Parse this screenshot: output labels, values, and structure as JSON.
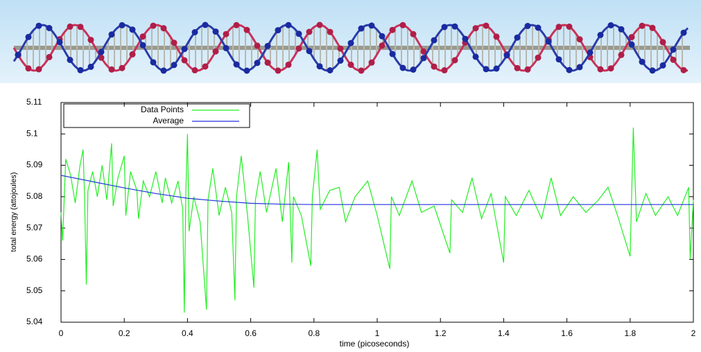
{
  "chart_data": {
    "type": "line",
    "ylabel": "total energy (attojoules)",
    "xlabel": "time  (picoseconds)",
    "xlim": [
      0,
      2
    ],
    "xticks": [
      0,
      0.2,
      0.4,
      0.6,
      0.8,
      1,
      1.2,
      1.4,
      1.6,
      1.8,
      2
    ],
    "ylim": [
      5.04,
      5.11
    ],
    "yticks": [
      5.04,
      5.05,
      5.06,
      5.07,
      5.08,
      5.09,
      5.1,
      5.11
    ],
    "legend": "top-left",
    "series": [
      {
        "name": "Data Points",
        "color": "#22ee22",
        "x": [
          0,
          0.005,
          0.015,
          0.03,
          0.045,
          0.06,
          0.07,
          0.075,
          0.08,
          0.085,
          0.1,
          0.115,
          0.13,
          0.145,
          0.16,
          0.165,
          0.18,
          0.2,
          0.205,
          0.22,
          0.24,
          0.245,
          0.26,
          0.28,
          0.3,
          0.32,
          0.33,
          0.35,
          0.37,
          0.385,
          0.39,
          0.395,
          0.4,
          0.405,
          0.42,
          0.44,
          0.46,
          0.465,
          0.48,
          0.5,
          0.52,
          0.54,
          0.55,
          0.555,
          0.57,
          0.59,
          0.61,
          0.615,
          0.63,
          0.65,
          0.68,
          0.7,
          0.72,
          0.73,
          0.735,
          0.76,
          0.79,
          0.795,
          0.81,
          0.82,
          0.85,
          0.88,
          0.9,
          0.93,
          0.97,
          1.0,
          1.04,
          1.045,
          1.07,
          1.11,
          1.14,
          1.18,
          1.23,
          1.235,
          1.27,
          1.3,
          1.33,
          1.36,
          1.4,
          1.405,
          1.44,
          1.48,
          1.52,
          1.55,
          1.58,
          1.62,
          1.66,
          1.7,
          1.73,
          1.76,
          1.8,
          1.81,
          1.82,
          1.85,
          1.88,
          1.92,
          1.95,
          1.985,
          1.99,
          2.0
        ],
        "values": [
          5.075,
          5.066,
          5.092,
          5.087,
          5.078,
          5.09,
          5.095,
          5.078,
          5.052,
          5.082,
          5.088,
          5.08,
          5.09,
          5.079,
          5.097,
          5.077,
          5.086,
          5.093,
          5.074,
          5.088,
          5.082,
          5.073,
          5.085,
          5.08,
          5.088,
          5.078,
          5.086,
          5.078,
          5.085,
          5.076,
          5.043,
          5.082,
          5.1,
          5.069,
          5.08,
          5.072,
          5.044,
          5.079,
          5.089,
          5.074,
          5.083,
          5.075,
          5.047,
          5.08,
          5.093,
          5.074,
          5.051,
          5.079,
          5.088,
          5.075,
          5.089,
          5.072,
          5.091,
          5.059,
          5.08,
          5.074,
          5.058,
          5.08,
          5.095,
          5.076,
          5.082,
          5.083,
          5.072,
          5.08,
          5.085,
          5.074,
          5.057,
          5.08,
          5.074,
          5.085,
          5.075,
          5.077,
          5.062,
          5.079,
          5.075,
          5.086,
          5.073,
          5.081,
          5.059,
          5.08,
          5.074,
          5.082,
          5.073,
          5.086,
          5.074,
          5.08,
          5.075,
          5.079,
          5.083,
          5.074,
          5.061,
          5.102,
          5.072,
          5.081,
          5.074,
          5.08,
          5.074,
          5.083,
          5.06,
          5.079
        ]
      },
      {
        "name": "Average",
        "color": "#2233dd",
        "x": [
          0,
          0.1,
          0.2,
          0.3,
          0.4,
          0.5,
          0.6,
          0.7,
          0.8,
          1,
          1.5,
          2
        ],
        "values": [
          5.0868,
          5.0848,
          5.0828,
          5.081,
          5.0795,
          5.0786,
          5.0779,
          5.0776,
          5.0775,
          5.0775,
          5.0775,
          5.0775
        ]
      }
    ]
  }
}
